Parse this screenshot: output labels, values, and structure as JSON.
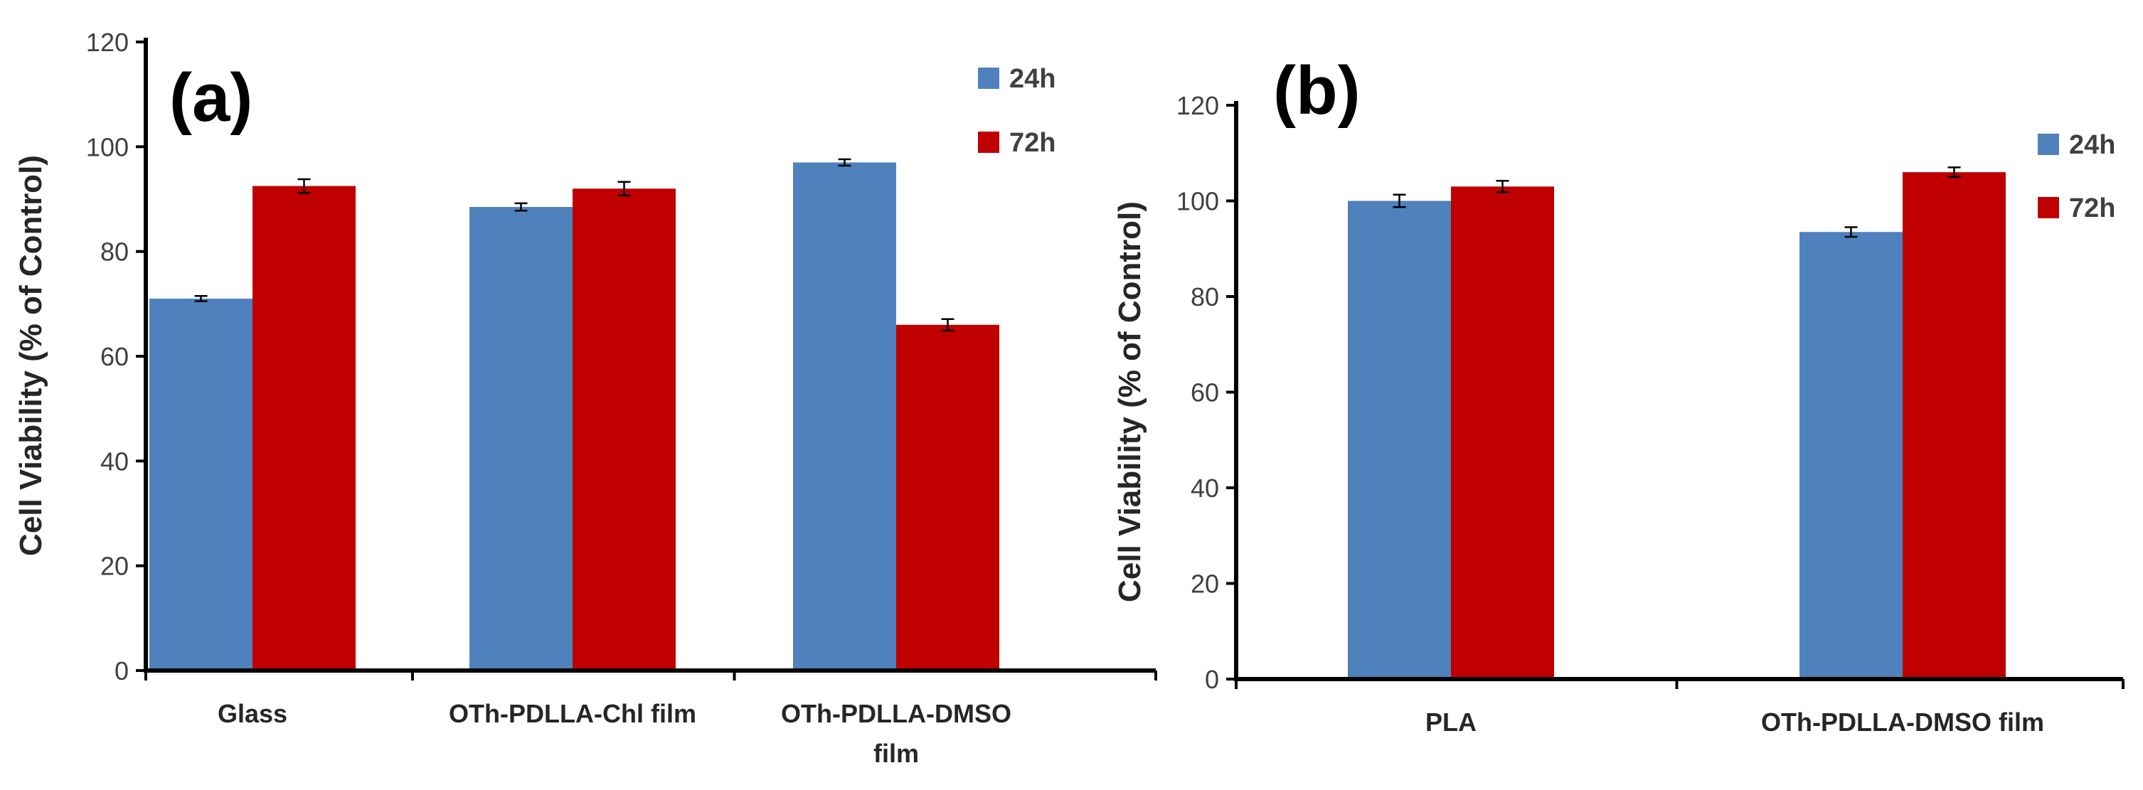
{
  "chart_data": [
    {
      "type": "bar",
      "panel_label": "(a)",
      "categories": [
        [
          "Glass"
        ],
        [
          "OTh-PDLLA-Chl film"
        ],
        [
          "OTh-PDLLA-DMSO",
          "film"
        ]
      ],
      "series": [
        {
          "name": "24h",
          "color": "#4f81bd",
          "values": [
            71,
            88.5,
            97
          ],
          "errors": [
            0.5,
            0.7,
            0.6
          ]
        },
        {
          "name": "72h",
          "color": "#c00000",
          "values": [
            92.5,
            92,
            66
          ],
          "errors": [
            1.3,
            1.3,
            1.1
          ]
        }
      ],
      "ylabel": "Cell Viability (% of Control)",
      "ylim": [
        0,
        120
      ],
      "yticks": [
        "0",
        "20",
        "40",
        "60",
        "80",
        "100",
        "120"
      ],
      "legend": "top-right"
    },
    {
      "type": "bar",
      "panel_label": "(b)",
      "categories": [
        [
          "PLA"
        ],
        [
          "OTh-PDLLA-DMSO film"
        ]
      ],
      "series": [
        {
          "name": "24h",
          "color": "#4f81bd",
          "values": [
            100,
            93.5
          ],
          "errors": [
            1.3,
            1.0
          ]
        },
        {
          "name": "72h",
          "color": "#c00000",
          "values": [
            103,
            106
          ],
          "errors": [
            1.2,
            1.0
          ]
        }
      ],
      "ylabel": "Cell Viability (% of Control)",
      "ylim": [
        0,
        120
      ],
      "yticks": [
        "0",
        "20",
        "40",
        "60",
        "80",
        "100",
        "120"
      ],
      "legend": "top-right"
    }
  ]
}
